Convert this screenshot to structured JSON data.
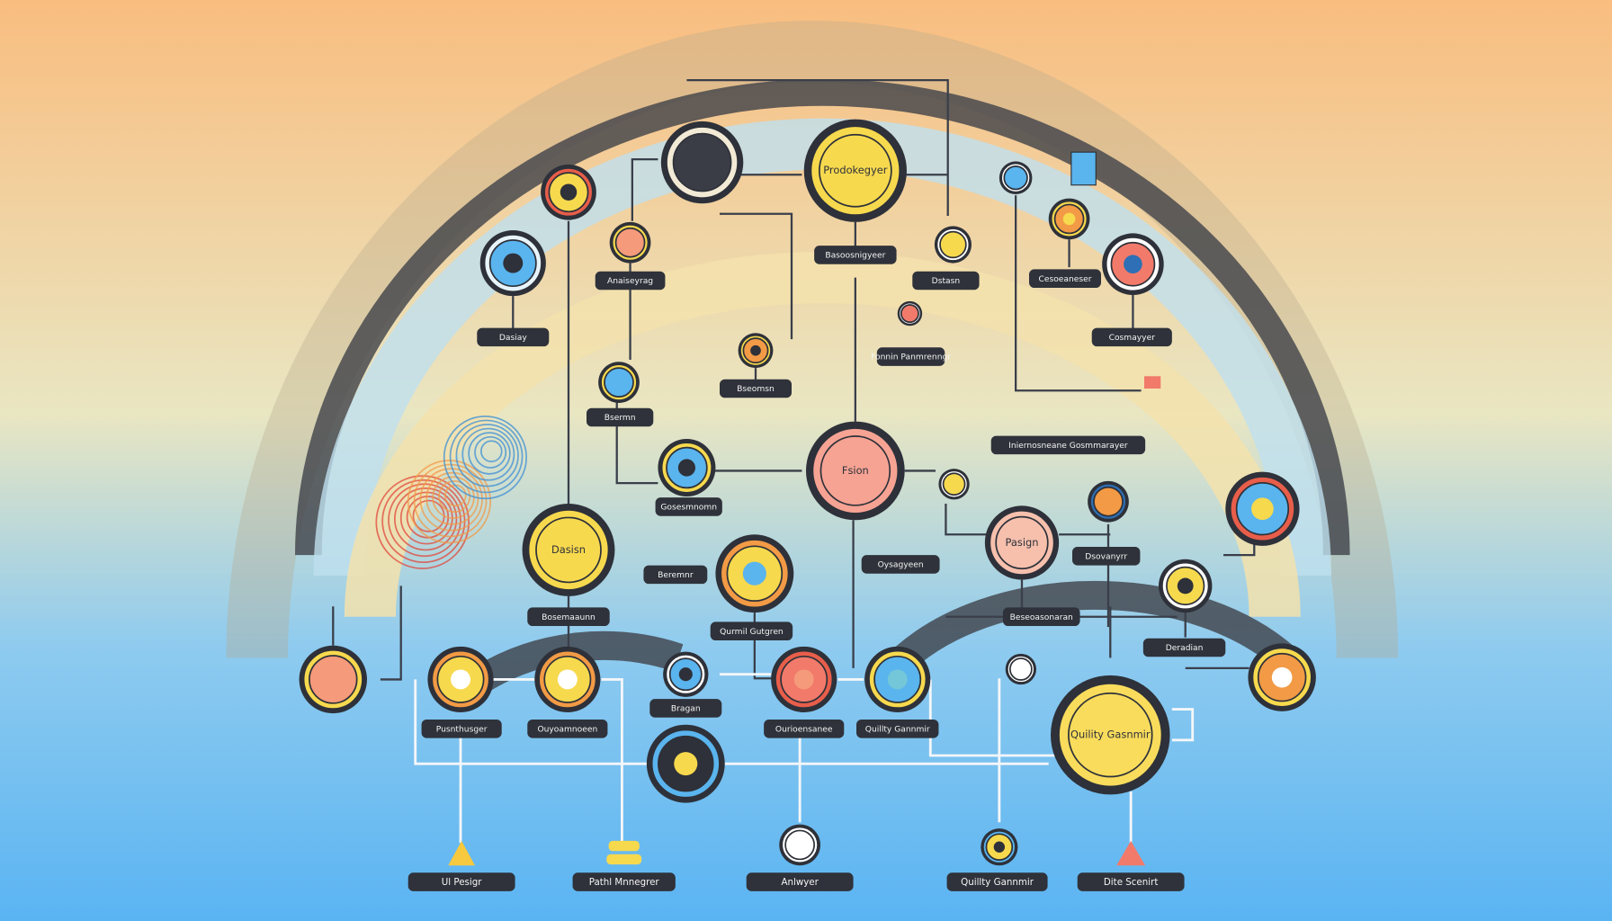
{
  "nodes": [
    "Prodokegyer",
    "Fsion",
    "Dasisn",
    "Pasign",
    "Quility Gasnmir"
  ],
  "tags": [
    "Dasiay",
    "Anaiseyrag",
    "Basoosnigyeer",
    "Dstasn",
    "Cesoeaneser",
    "Cosmayyer",
    "Bseomsn",
    "Bsermn",
    "Fonnin Panmrenngr",
    "Iniernosneane Gosmmarayer",
    "Gosesmnomn",
    "Beremnr",
    "Oysagyeen",
    "Dsovanyrr",
    "Bosemaaunn",
    "Qurmil Gutgren",
    "Beseoasonaran",
    "Deradian",
    "Bragan",
    "Pusnthusger",
    "Ouyoamnoeen",
    "Ourioensanee",
    "Quillty Gannmir"
  ],
  "outputs": [
    "Ul Pesigr",
    "Pathl Mnnegrer",
    "Anlwyer",
    "Quillty Gannmir",
    "Dite Scenirt"
  ]
}
